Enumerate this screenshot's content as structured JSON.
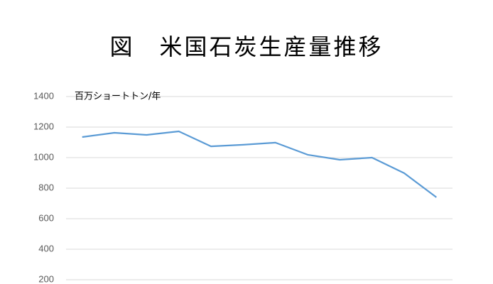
{
  "chart_data": {
    "type": "line",
    "title": "図　米国石炭生産量推移",
    "annotation": "百万ショートトン/年",
    "categories": [
      null,
      null,
      null,
      null,
      null,
      null,
      null,
      null,
      null,
      null,
      null,
      null
    ],
    "series": [
      {
        "name": null,
        "color": "#5b9bd5",
        "values": [
          1135,
          1163,
          1149,
          1172,
          1074,
          1084,
          1098,
          1019,
          986,
          1000,
          898,
          740
        ]
      }
    ],
    "ylim": [
      200,
      1400
    ],
    "yticks": [
      200,
      400,
      600,
      800,
      1000,
      1200,
      1400
    ],
    "grid": true
  }
}
